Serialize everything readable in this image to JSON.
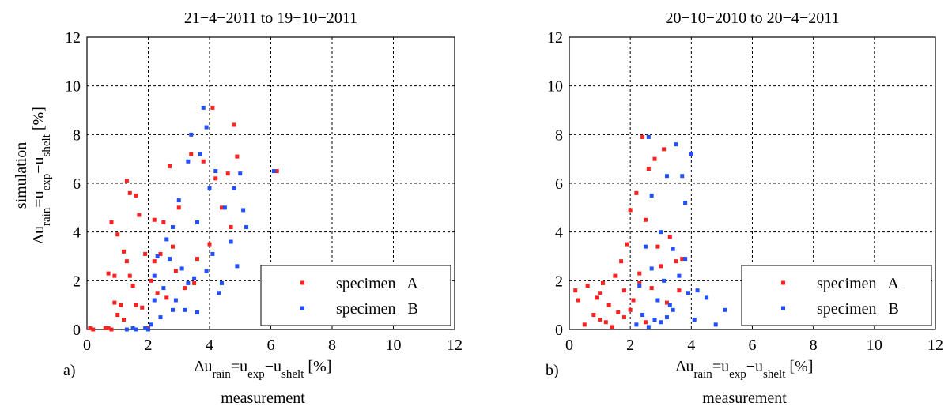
{
  "chart_data": [
    {
      "type": "scatter",
      "title": "21−4−2011 to 19−10−2011",
      "panel_label": "a)",
      "xlabel": [
        {
          "text": "Δu",
          "sub": false
        },
        {
          "text": "rain",
          "sub": true
        },
        {
          "text": "=u",
          "sub": false
        },
        {
          "text": "exp",
          "sub": true
        },
        {
          "text": "−u",
          "sub": false
        },
        {
          "text": "shelt",
          "sub": true
        },
        {
          "text": " [%]",
          "sub": false
        }
      ],
      "xlabel_caption": "measurement",
      "ylabel": [
        {
          "text": "Δu",
          "sub": false
        },
        {
          "text": "rain",
          "sub": true
        },
        {
          "text": "=u",
          "sub": false
        },
        {
          "text": "exp",
          "sub": true
        },
        {
          "text": "−u",
          "sub": false
        },
        {
          "text": "shelt",
          "sub": true
        },
        {
          "text": " [%]",
          "sub": false
        }
      ],
      "ylabel_caption": "simulation",
      "xlim": [
        0,
        12
      ],
      "ylim": [
        0,
        12
      ],
      "xticks": [
        0,
        2,
        4,
        6,
        8,
        10,
        12
      ],
      "yticks": [
        0,
        2,
        4,
        6,
        8,
        10,
        12
      ],
      "grid": true,
      "legend": "lower right",
      "series": [
        {
          "name": "specimen   A",
          "color": "#ff2020",
          "x": [
            0.1,
            0.2,
            0.6,
            0.7,
            0.8,
            0.7,
            0.8,
            0.9,
            1.0,
            1.1,
            1.2,
            1.3,
            1.3,
            1.4,
            1.5,
            1.6,
            1.7,
            1.8,
            1.9,
            2.0,
            2.1,
            2.2,
            2.3,
            2.4,
            2.5,
            2.6,
            2.7,
            2.8,
            2.9,
            3.0,
            3.2,
            3.4,
            3.5,
            3.6,
            3.8,
            4.0,
            4.1,
            4.2,
            4.4,
            4.6,
            4.7,
            4.8,
            4.9,
            6.2,
            1.2,
            0.9,
            1.6,
            2.2,
            1.0,
            1.4
          ],
          "values": [
            0.05,
            0,
            0.05,
            0.05,
            0,
            2.3,
            4.4,
            2.2,
            3.9,
            1.0,
            3.2,
            6.1,
            2.8,
            5.6,
            1.8,
            5.5,
            4.7,
            0.9,
            3.1,
            0.05,
            2.0,
            4.5,
            1.5,
            3.1,
            4.4,
            1.3,
            6.7,
            3.4,
            2.4,
            5.0,
            1.7,
            7.2,
            1.9,
            2.9,
            6.9,
            3.5,
            9.1,
            6.2,
            5.0,
            6.4,
            4.2,
            8.4,
            7.1,
            6.5,
            0.4,
            1.1,
            1.0,
            2.8,
            0.6,
            2.2
          ]
        },
        {
          "name": "specimen   B",
          "color": "#2050ff",
          "x": [
            1.3,
            1.5,
            1.6,
            1.9,
            2.0,
            2.1,
            2.2,
            2.3,
            2.4,
            2.5,
            2.6,
            2.7,
            2.8,
            2.9,
            3.0,
            3.1,
            3.2,
            3.3,
            3.4,
            3.5,
            3.6,
            3.7,
            3.8,
            3.9,
            4.0,
            4.1,
            4.2,
            4.3,
            4.5,
            4.7,
            4.9,
            5.0,
            5.1,
            5.2,
            4.8,
            6.1,
            2.2,
            2.8,
            3.3,
            3.9,
            3.6,
            4.4
          ],
          "values": [
            0,
            0.05,
            0,
            0.05,
            0,
            0.2,
            2.2,
            3.0,
            0.5,
            1.7,
            3.7,
            2.9,
            4.2,
            1.2,
            5.3,
            2.5,
            0.8,
            6.9,
            8.0,
            2.1,
            4.4,
            7.2,
            9.1,
            8.3,
            5.8,
            3.1,
            6.5,
            1.5,
            5.0,
            3.6,
            2.6,
            6.4,
            4.9,
            4.2,
            5.8,
            6.5,
            1.2,
            0.8,
            1.9,
            2.4,
            0.7,
            1.9
          ]
        }
      ]
    },
    {
      "type": "scatter",
      "title": "20−10−2010 to 20−4−2011",
      "panel_label": "b)",
      "xlabel": [
        {
          "text": "Δu",
          "sub": false
        },
        {
          "text": "rain",
          "sub": true
        },
        {
          "text": "=u",
          "sub": false
        },
        {
          "text": "exp",
          "sub": true
        },
        {
          "text": "−u",
          "sub": false
        },
        {
          "text": "shelt",
          "sub": true
        },
        {
          "text": " [%]",
          "sub": false
        }
      ],
      "xlabel_caption": "measurement",
      "xlim": [
        0,
        12
      ],
      "ylim": [
        0,
        12
      ],
      "xticks": [
        0,
        2,
        4,
        6,
        8,
        10,
        12
      ],
      "yticks": [
        0,
        2,
        4,
        6,
        8,
        10,
        12
      ],
      "grid": true,
      "legend": "lower right",
      "series": [
        {
          "name": "specimen   A",
          "color": "#ff2020",
          "x": [
            0.2,
            0.3,
            0.5,
            0.6,
            0.8,
            0.9,
            1.0,
            1.1,
            1.2,
            1.3,
            1.4,
            1.5,
            1.6,
            1.7,
            1.8,
            1.9,
            2.0,
            2.1,
            2.2,
            2.3,
            2.4,
            2.5,
            2.6,
            2.7,
            2.8,
            2.9,
            3.0,
            3.1,
            3.2,
            3.3,
            3.5,
            3.6,
            3.7,
            2.0,
            1.0,
            2.5,
            2.3,
            1.8
          ],
          "values": [
            1.6,
            1.2,
            0.2,
            1.8,
            0.6,
            1.3,
            0.4,
            1.9,
            0.3,
            1.0,
            0.1,
            2.2,
            0.7,
            2.8,
            1.6,
            3.5,
            4.9,
            1.2,
            5.6,
            2.3,
            7.9,
            4.5,
            6.6,
            1.7,
            7.0,
            3.4,
            2.6,
            7.4,
            1.1,
            3.8,
            2.8,
            1.6,
            2.9,
            0.8,
            1.5,
            0.3,
            1.9,
            0.5
          ]
        },
        {
          "name": "specimen   B",
          "color": "#2050ff",
          "x": [
            2.2,
            2.3,
            2.4,
            2.5,
            2.6,
            2.7,
            2.8,
            2.9,
            3.0,
            3.1,
            3.2,
            3.3,
            3.4,
            3.5,
            3.6,
            3.7,
            3.8,
            3.9,
            4.0,
            4.1,
            4.2,
            4.5,
            4.8,
            5.1,
            3.0,
            2.6,
            3.4,
            3.8,
            2.7,
            3.2
          ],
          "values": [
            0.2,
            1.8,
            0.6,
            3.4,
            7.9,
            5.5,
            0.4,
            1.2,
            4.0,
            2.0,
            6.3,
            1.0,
            3.3,
            7.6,
            2.2,
            6.3,
            5.2,
            1.5,
            7.2,
            0.4,
            1.6,
            1.3,
            0.2,
            0.8,
            0.3,
            0.1,
            0.8,
            2.9,
            2.5,
            0.5
          ]
        }
      ]
    }
  ]
}
